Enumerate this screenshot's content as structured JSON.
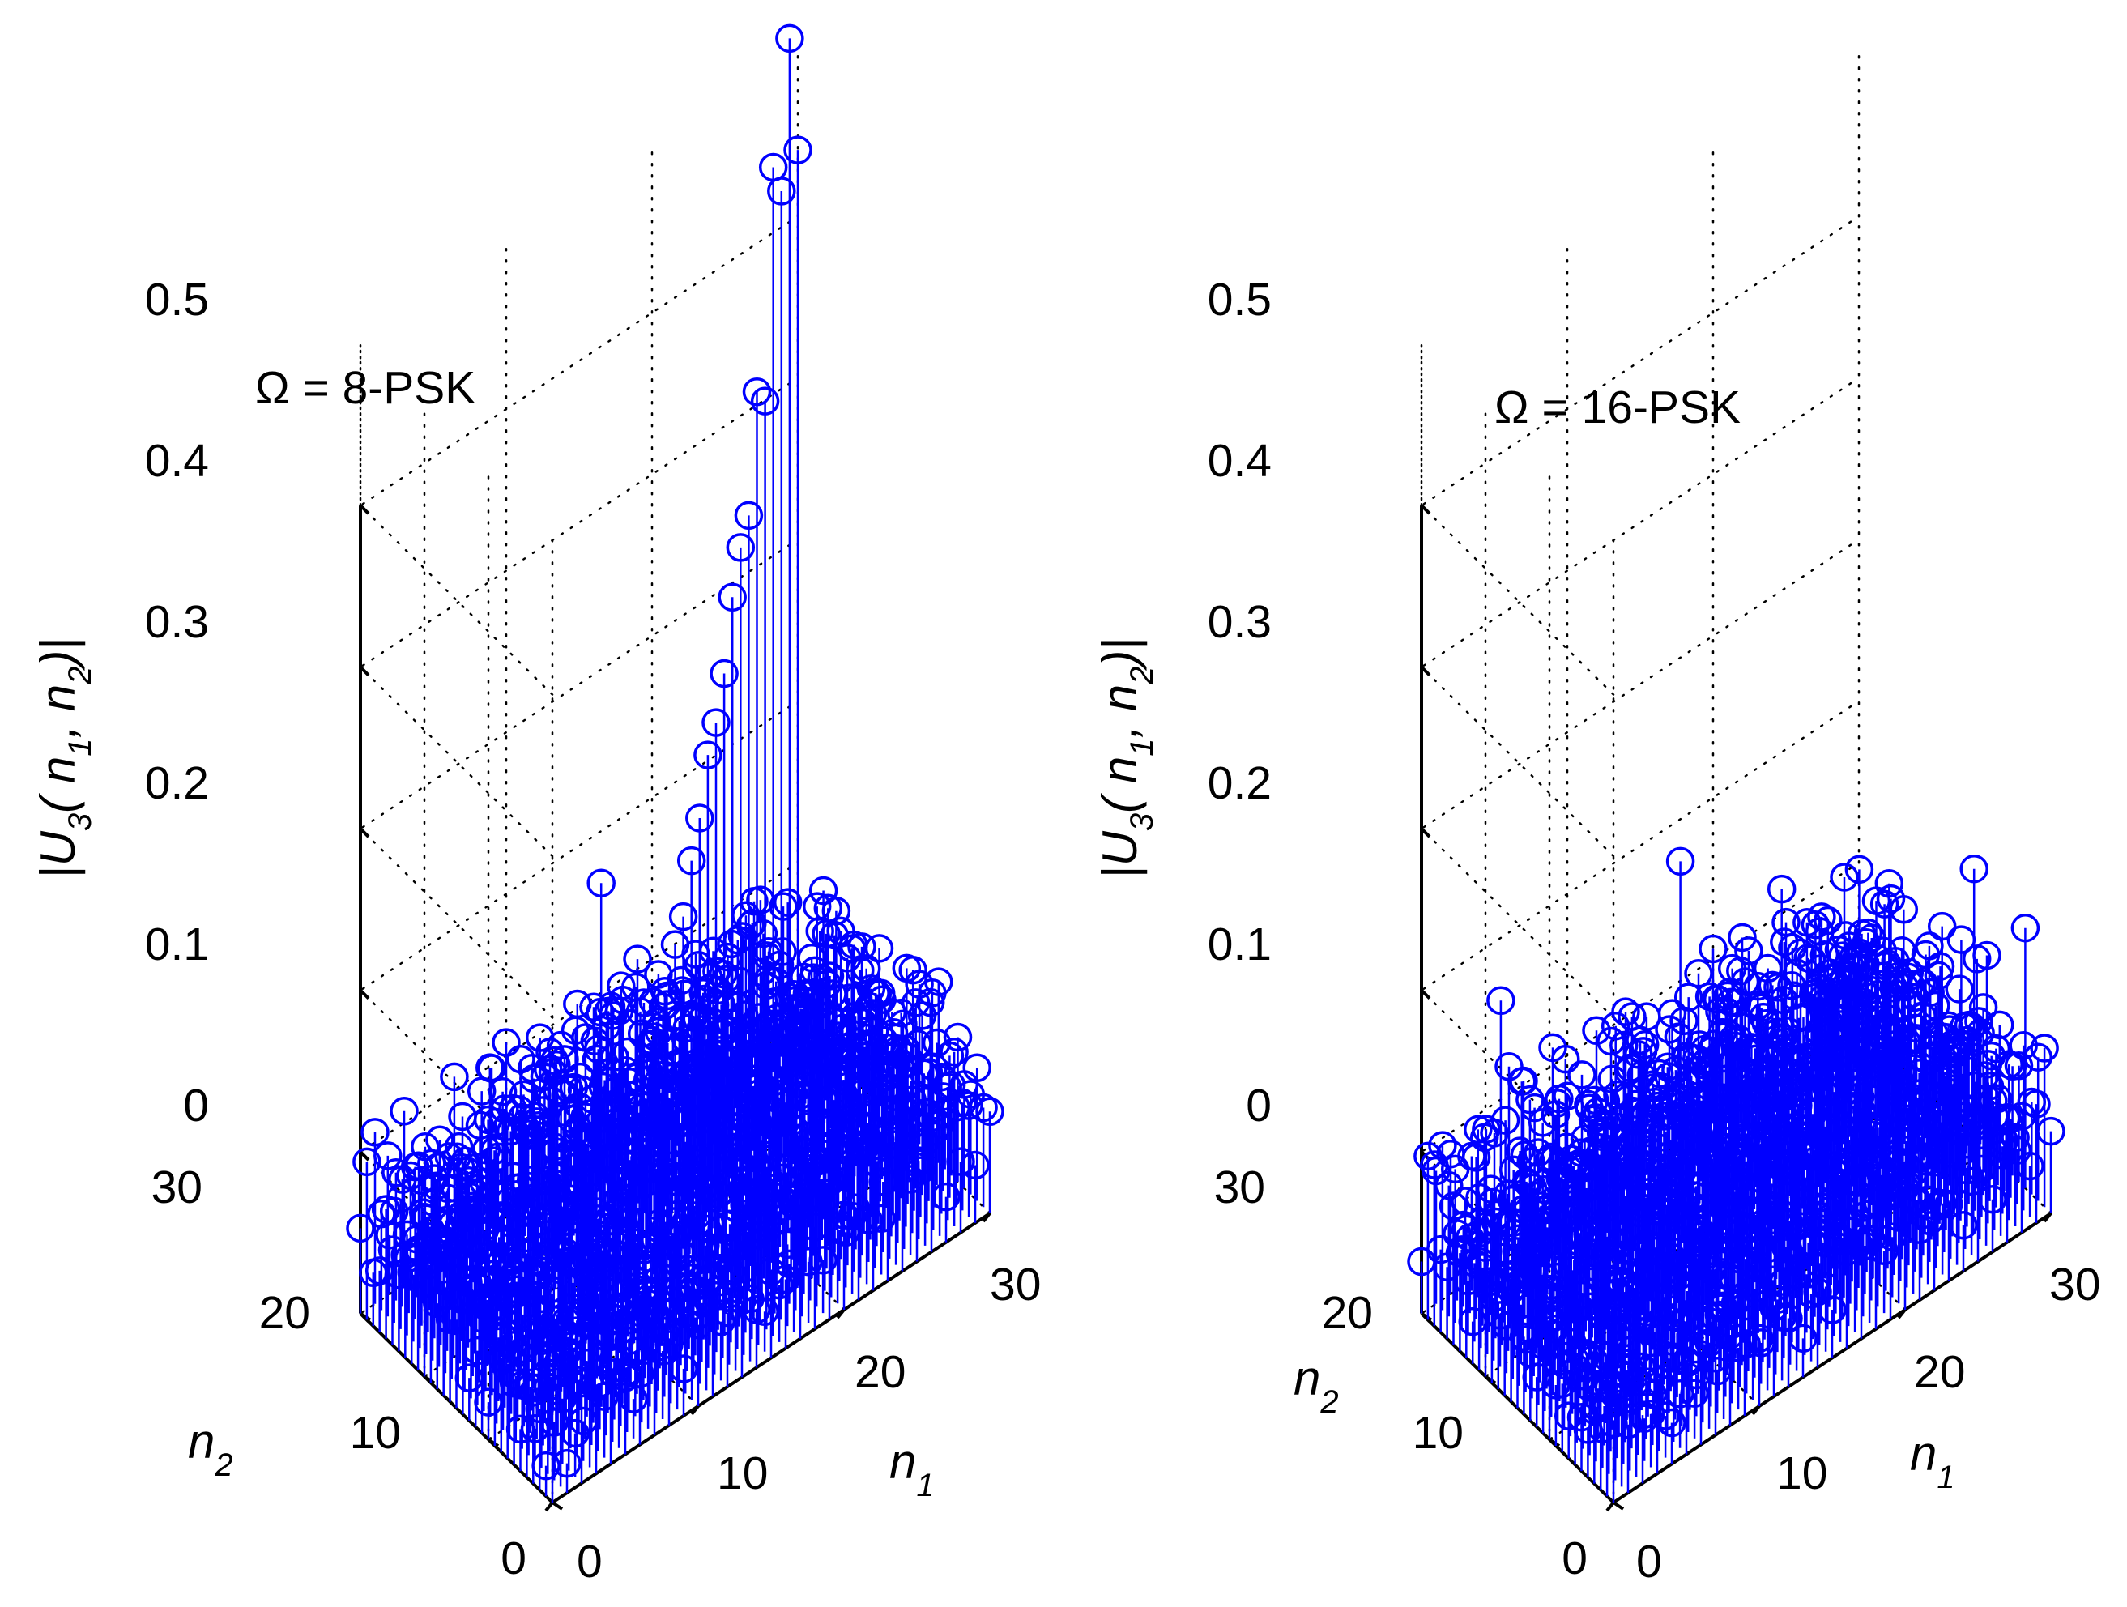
{
  "figure": {
    "description_free": true
  },
  "chart_data": [
    {
      "type": "stem3",
      "annotation": "Ω = 8-PSK",
      "zlabel": "|U3( n1, n2)|",
      "zlabel_parts": {
        "pre": "|U",
        "s1": "3",
        "mid1": "( n",
        "s2": "1",
        "mid2": ", n",
        "s3": "2",
        "post": ")|"
      },
      "xlabel": {
        "base": "n",
        "sub": "1"
      },
      "ylabel": {
        "base": "n",
        "sub": "2"
      },
      "x_range": [
        0,
        30
      ],
      "y_range": [
        0,
        30
      ],
      "z_range": [
        0,
        0.5
      ],
      "x_ticks": [
        "0",
        "10",
        "20",
        "30"
      ],
      "y_ticks": [
        "0",
        "10",
        "20",
        "30"
      ],
      "z_ticks": [
        "0",
        "0.1",
        "0.2",
        "0.3",
        "0.4",
        "0.5"
      ],
      "grid": true,
      "series_color": "#0000ff",
      "ridge": {
        "location": "n1 = n2",
        "peak_value": 0.62,
        "background_level_mean": 0.06
      },
      "notable_points": [
        {
          "n1": 29,
          "n2": 29,
          "value": 0.62
        },
        {
          "n1": 27,
          "n2": 27,
          "value": 0.56
        },
        {
          "n1": 13,
          "n2": 22,
          "value": 0.22
        }
      ]
    },
    {
      "type": "stem3",
      "annotation": "Ω = 16-PSK",
      "zlabel": "|U3( n1, n2)|",
      "zlabel_parts": {
        "pre": "|U",
        "s1": "3",
        "mid1": "( n",
        "s2": "1",
        "mid2": ", n",
        "s3": "2",
        "post": ")|"
      },
      "xlabel": {
        "base": "n",
        "sub": "1"
      },
      "ylabel": {
        "base": "n",
        "sub": "2"
      },
      "x_range": [
        0,
        30
      ],
      "y_range": [
        0,
        30
      ],
      "z_range": [
        0,
        0.5
      ],
      "x_ticks": [
        "0",
        "10",
        "20",
        "30"
      ],
      "y_ticks": [
        "0",
        "10",
        "20",
        "30"
      ],
      "z_ticks": [
        "0",
        "0.1",
        "0.2",
        "0.3",
        "0.4",
        "0.5"
      ],
      "grid": true,
      "series_color": "#0000ff",
      "ridge": null,
      "max_value": 0.2,
      "background_level_mean": 0.06
    }
  ]
}
